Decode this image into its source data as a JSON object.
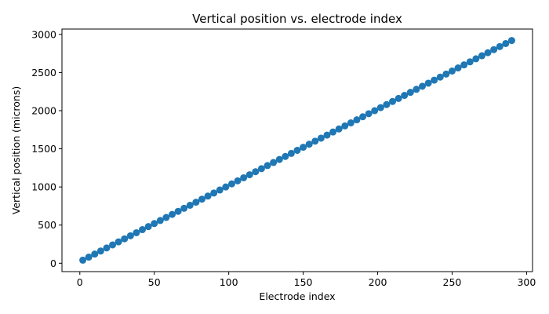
{
  "chart_data": {
    "type": "scatter",
    "title": "Vertical position vs. electrode index",
    "xlabel": "Electrode index",
    "ylabel": "Vertical position (microns)",
    "xlim": [
      -12,
      304
    ],
    "ylim": [
      -110,
      3070
    ],
    "xticks": [
      0,
      50,
      100,
      150,
      200,
      250,
      300
    ],
    "yticks": [
      0,
      500,
      1000,
      1500,
      2000,
      2500,
      3000
    ],
    "grid": false,
    "legend": "none",
    "colors": {
      "marker": "#1f77b4"
    },
    "series": [
      {
        "x": [
          2,
          6,
          10,
          14,
          18,
          22,
          26,
          30,
          34,
          38,
          42,
          46,
          50,
          54,
          58,
          62,
          66,
          70,
          74,
          78,
          82,
          86,
          90,
          94,
          98,
          102,
          106,
          110,
          114,
          118,
          122,
          126,
          130,
          134,
          138,
          142,
          146,
          150,
          154,
          158,
          162,
          166,
          170,
          174,
          178,
          182,
          186,
          190,
          194,
          198,
          202,
          206,
          210,
          214,
          218,
          222,
          226,
          230,
          234,
          238,
          242,
          246,
          250,
          254,
          258,
          262,
          266,
          270,
          274,
          278,
          282,
          286,
          290
        ],
        "y": [
          40,
          80,
          120,
          160,
          200,
          240,
          280,
          320,
          360,
          400,
          440,
          480,
          520,
          560,
          600,
          640,
          680,
          720,
          760,
          800,
          840,
          880,
          920,
          960,
          1000,
          1040,
          1080,
          1120,
          1160,
          1200,
          1240,
          1280,
          1320,
          1360,
          1400,
          1440,
          1480,
          1520,
          1560,
          1600,
          1640,
          1680,
          1720,
          1760,
          1800,
          1840,
          1880,
          1920,
          1960,
          2000,
          2040,
          2080,
          2120,
          2160,
          2200,
          2240,
          2280,
          2320,
          2360,
          2400,
          2440,
          2480,
          2520,
          2560,
          2600,
          2640,
          2680,
          2720,
          2760,
          2800,
          2840,
          2880,
          2920
        ]
      }
    ]
  }
}
